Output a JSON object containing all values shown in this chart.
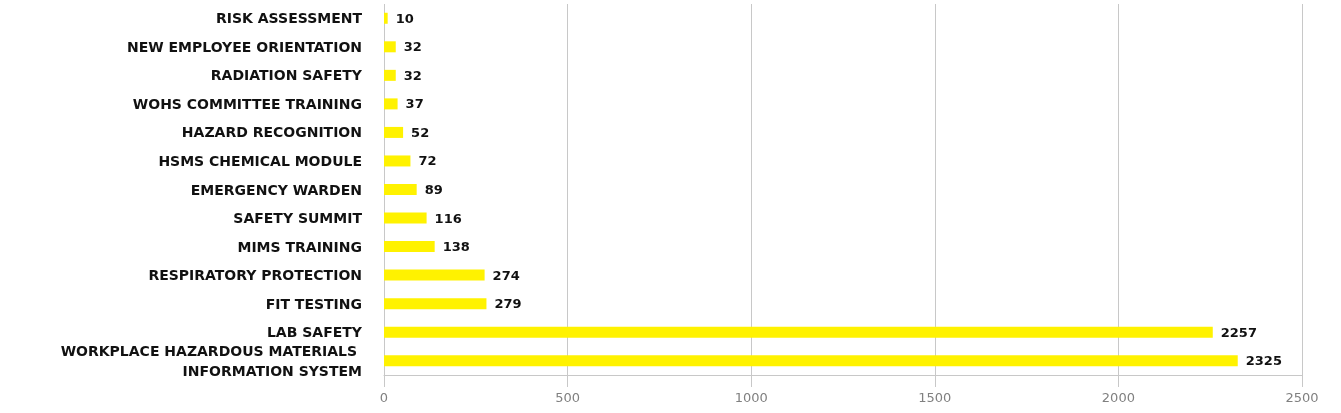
{
  "chart_data": {
    "type": "bar",
    "orientation": "horizontal",
    "categories": [
      "RISK ASSESSMENT",
      "NEW EMPLOYEE ORIENTATION",
      "RADIATION SAFETY",
      "WOHS COMMITTEE TRAINING",
      "HAZARD RECOGNITION",
      "HSMS CHEMICAL MODULE",
      "EMERGENCY WARDEN",
      "SAFETY SUMMIT",
      "MIMS TRAINING",
      "RESPIRATORY PROTECTION",
      "FIT TESTING",
      "LAB SAFETY",
      "WORKPLACE HAZARDOUS MATERIALS INFORMATION SYSTEM"
    ],
    "values": [
      10,
      32,
      32,
      37,
      52,
      72,
      89,
      116,
      138,
      274,
      279,
      2257,
      2325
    ],
    "color": "#fff200",
    "xlim": [
      0,
      2500
    ],
    "xticks": [
      0,
      500,
      1000,
      1500,
      2000,
      2500
    ],
    "grid": "x",
    "data_labels": true
  }
}
